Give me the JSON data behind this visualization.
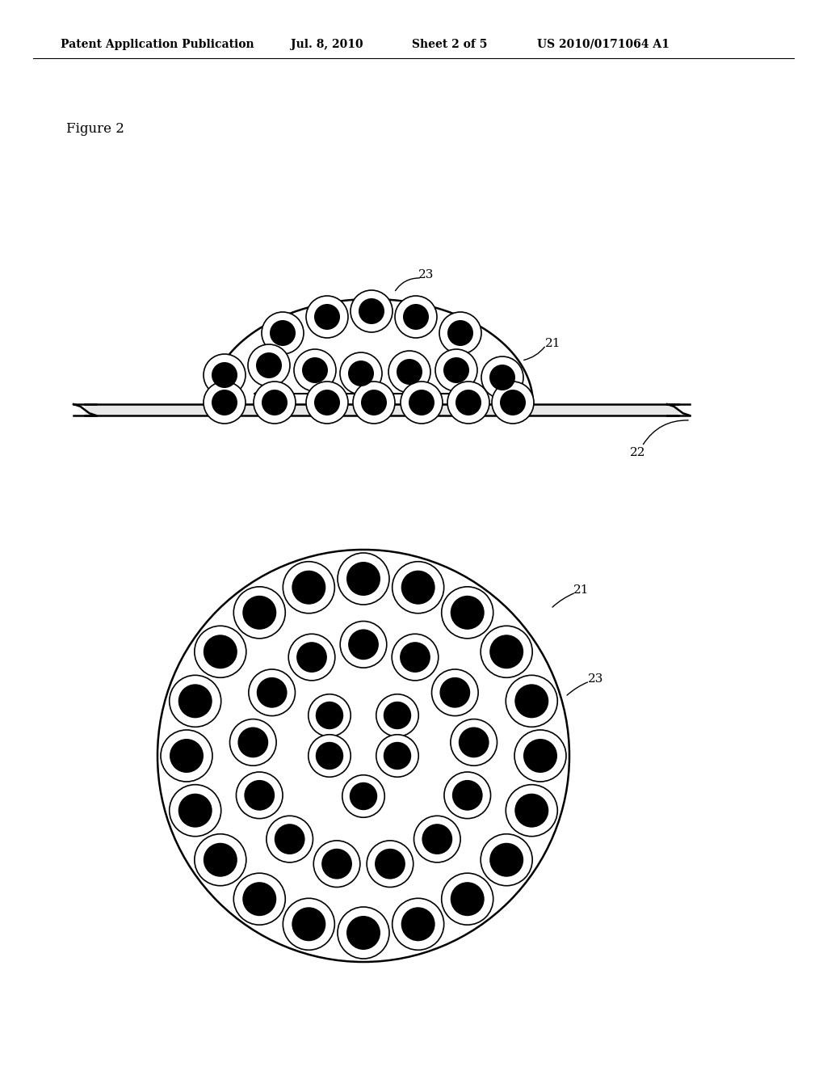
{
  "bg_color": "#ffffff",
  "header_text": "Patent Application Publication",
  "header_date": "Jul. 8, 2010",
  "header_sheet": "Sheet 2 of 5",
  "header_patent": "US 2010/0171064 A1",
  "figure_label": "Figure 2",
  "fig_width": 10.24,
  "fig_height": 13.2,
  "fig_dpi": 100
}
